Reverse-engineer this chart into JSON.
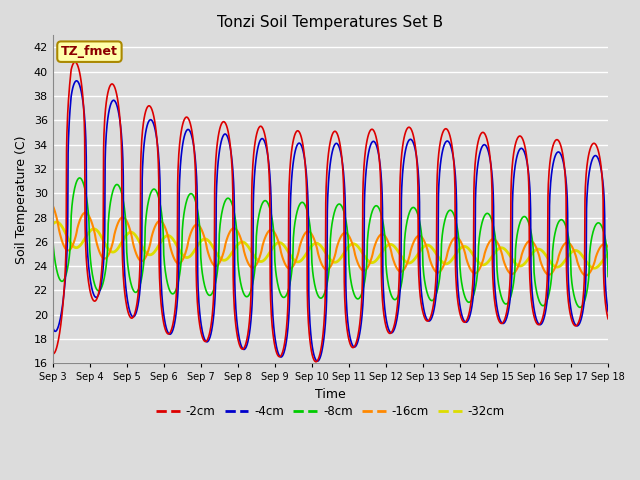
{
  "title": "Tonzi Soil Temperatures Set B",
  "xlabel": "Time",
  "ylabel": "Soil Temperature (C)",
  "ylim": [
    16,
    43
  ],
  "yticks": [
    16,
    18,
    20,
    22,
    24,
    26,
    28,
    30,
    32,
    34,
    36,
    38,
    40,
    42
  ],
  "background_color": "#dcdcdc",
  "grid_color": "#ffffff",
  "annotation_text": "TZ_fmet",
  "annotation_color": "#8b0000",
  "annotation_bg": "#ffffaa",
  "annotation_border": "#aa8800",
  "series": [
    {
      "label": "-2cm",
      "color": "#dd0000",
      "linewidth": 1.2
    },
    {
      "label": "-4cm",
      "color": "#0000cc",
      "linewidth": 1.2
    },
    {
      "label": "-8cm",
      "color": "#00cc00",
      "linewidth": 1.2
    },
    {
      "label": "-16cm",
      "color": "#ff8800",
      "linewidth": 1.5
    },
    {
      "label": "-32cm",
      "color": "#dddd00",
      "linewidth": 2.0
    }
  ],
  "x_tick_labels": [
    "Sep 3",
    "Sep 4",
    "Sep 5",
    "Sep 6",
    "Sep 7",
    "Sep 8",
    "Sep 9",
    "Sep 10",
    "Sep 11",
    "Sep 12",
    "Sep 13",
    "Sep 14",
    "Sep 15",
    "Sep 16",
    "Sep 17",
    "Sep 18"
  ]
}
